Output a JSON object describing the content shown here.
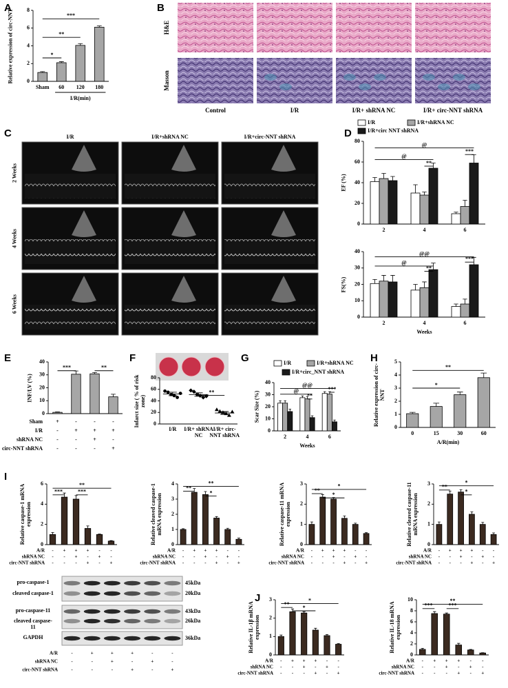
{
  "panel_labels": [
    "A",
    "B",
    "C",
    "D",
    "E",
    "F",
    "G",
    "H",
    "I",
    "J"
  ],
  "histology": {
    "stains": [
      "H&E",
      "Masson"
    ],
    "groups": [
      "Control",
      "I/R",
      "I/R+ shRNA NC",
      "I/R+ circ-NNT shRNA"
    ]
  },
  "echo": {
    "groups": [
      "I/R",
      "I/R+shRNA NC",
      "I/R+circ-NNT shRNA"
    ],
    "times": [
      "2 Weeks",
      "4 Weeks",
      "6 Weeks"
    ]
  },
  "western_blot": {
    "bands": [
      "pro-caspase-1",
      "cleaved caspase-1",
      "pro-caspase-11",
      "cleaved caspase-11",
      "GAPDH"
    ],
    "sizes": [
      "45kDa",
      "20kDa",
      "43kDa",
      "26kDa",
      "36kDa"
    ]
  },
  "group_table": {
    "rows": [
      {
        "label": "A/R",
        "signs": [
          "-",
          "+",
          "+",
          "+",
          "-",
          "-"
        ]
      },
      {
        "label": "shRNA NC",
        "signs": [
          "-",
          "-",
          "+",
          "-",
          "+",
          "-"
        ]
      },
      {
        "label": "circ-NNT shRNA",
        "signs": [
          "-",
          "-",
          "-",
          "+",
          "-",
          "+"
        ]
      }
    ]
  },
  "chart_data": [
    {
      "type": "bar",
      "y_label": "Relative expression of circ-NNT",
      "x_label": "I/R(min)",
      "categories": [
        "Sham",
        "60",
        "120",
        "180"
      ],
      "values": [
        1,
        2.1,
        4.05,
        6.1
      ],
      "errors": [
        0.1,
        0.12,
        0.2,
        0.15
      ],
      "color": "#a6a6a6",
      "ylim": [
        0,
        8
      ],
      "yticks": [
        0,
        2,
        4,
        6,
        8
      ],
      "annotations": [
        "*",
        "**",
        "***"
      ]
    },
    {
      "type": "bar",
      "y_label": "EF (%)",
      "categories": [
        "2",
        "4",
        "6"
      ],
      "series": [
        {
          "name": "I/R",
          "color": "#ffffff",
          "values": [
            41,
            30,
            10
          ],
          "errors": [
            4,
            8,
            1.5
          ]
        },
        {
          "name": "I/R+shRNA NC",
          "color": "#a6a6a6",
          "values": [
            44,
            28,
            17
          ],
          "errors": [
            5,
            3,
            6
          ]
        },
        {
          "name": "I/R+circ  NNT shRNA",
          "color": "#1a1a1a",
          "values": [
            42,
            54,
            59
          ],
          "errors": [
            4,
            5,
            8
          ]
        }
      ],
      "ylim": [
        0,
        80
      ],
      "yticks": [
        0,
        20,
        40,
        60,
        80
      ],
      "legend": true,
      "annotations": [
        "@",
        "@",
        "**",
        "***"
      ]
    },
    {
      "type": "bar",
      "y_label": "FS(%)",
      "x_label": "Weeks",
      "categories": [
        "2",
        "4",
        "6"
      ],
      "series": [
        {
          "color": "#ffffff",
          "values": [
            20.5,
            16.5,
            6.5
          ],
          "errors": [
            2.5,
            3.5,
            1.5
          ]
        },
        {
          "color": "#a6a6a6",
          "values": [
            22,
            18,
            8
          ],
          "errors": [
            3.5,
            3.5,
            3
          ]
        },
        {
          "color": "#1a1a1a",
          "values": [
            21.5,
            29,
            32
          ],
          "errors": [
            4,
            4,
            4.5
          ]
        }
      ],
      "ylim": [
        0,
        40
      ],
      "yticks": [
        0,
        10,
        20,
        30,
        40
      ],
      "legend": false,
      "annotations": [
        "@",
        "@@",
        "**",
        "***"
      ]
    },
    {
      "type": "bar",
      "y_label": "INF/LV (%)",
      "values": [
        1,
        30.5,
        30.8,
        13
      ],
      "errors": [
        0.3,
        2.5,
        1,
        2
      ],
      "color": "#a6a6a6",
      "ylim": [
        0,
        40
      ],
      "yticks": [
        0,
        10,
        20,
        30,
        40
      ],
      "table": [
        {
          "label": "Sham",
          "signs": [
            "+",
            "-",
            "-",
            "-"
          ]
        },
        {
          "label": "I/R",
          "signs": [
            "-",
            "+",
            "+",
            "+"
          ]
        },
        {
          "label": "shRNA NC",
          "signs": [
            "-",
            "-",
            "+",
            "-"
          ]
        },
        {
          "label": "circ-NNT shRNA",
          "signs": [
            "-",
            "-",
            "-",
            "+"
          ]
        }
      ],
      "annotations": [
        "***",
        "**"
      ]
    },
    {
      "type": "dot",
      "y_label": "Infarct size ( % of risk zone)",
      "categories": [
        "I/R",
        "I/R+ shRNA NC",
        "I/R+ circ-NNT shRNA"
      ],
      "points": [
        [
          57,
          55,
          51,
          49,
          46,
          53
        ],
        [
          58,
          56,
          51,
          49,
          46,
          48
        ],
        [
          25,
          22,
          20,
          18,
          15,
          21
        ]
      ],
      "means": [
        52,
        51,
        19
      ],
      "errors": [
        3,
        3,
        2.5
      ],
      "ylim": [
        0,
        80
      ],
      "yticks": [
        0,
        20,
        40,
        60,
        80
      ],
      "annotations": [
        "**"
      ]
    },
    {
      "type": "bar",
      "y_label": "Scar Size (%)",
      "x_label": "Weeks",
      "categories": [
        "2",
        "4",
        "6"
      ],
      "series": [
        {
          "name": "I/R",
          "color": "#ffffff",
          "values": [
            23,
            27.5,
            31
          ],
          "errors": [
            2,
            1.5,
            1.5
          ]
        },
        {
          "name": "I/R+shRNA NC",
          "color": "#a6a6a6",
          "values": [
            23,
            26.5,
            30.5
          ],
          "errors": [
            2,
            2,
            2
          ]
        },
        {
          "name": "I/R+circ_NNT shRNA",
          "color": "#1a1a1a",
          "values": [
            16,
            11,
            7.5
          ],
          "errors": [
            2,
            1.5,
            1.5
          ]
        }
      ],
      "ylim": [
        0,
        40
      ],
      "yticks": [
        0,
        10,
        20,
        30,
        40
      ],
      "legend": true,
      "annotations": [
        "@",
        "@@",
        "**",
        "***"
      ]
    },
    {
      "type": "bar",
      "y_label": "Relative expression of circ-NNT",
      "x_label": "A/R(min)",
      "categories": [
        "0",
        "15",
        "30",
        "60"
      ],
      "values": [
        1.05,
        1.6,
        2.5,
        3.8
      ],
      "errors": [
        0.1,
        0.25,
        0.2,
        0.35
      ],
      "color": "#a6a6a6",
      "ylim": [
        0,
        5
      ],
      "yticks": [
        0,
        1,
        2,
        3,
        4,
        5
      ],
      "annotations": [
        "*",
        "**"
      ]
    },
    {
      "type": "bar",
      "y_label": "Relative caspase-1 mRNA expression",
      "values": [
        1,
        4.7,
        4.5,
        1.6,
        1.0,
        0.35
      ],
      "errors": [
        0.2,
        0.4,
        0.35,
        0.25,
        0.05,
        0.05
      ],
      "color": "#3b2a20",
      "ylim": [
        0,
        6
      ],
      "yticks": [
        0,
        2,
        4,
        6
      ],
      "annotations": [
        "***",
        "***",
        "**"
      ]
    },
    {
      "type": "bar",
      "y_label": "Relative cleaved caspase-1 mRNA expression",
      "values": [
        1,
        3.45,
        3.3,
        1.75,
        1.0,
        0.35
      ],
      "errors": [
        0.05,
        0.25,
        0.2,
        0.1,
        0.08,
        0.08
      ],
      "color": "#3b2a20",
      "ylim": [
        0,
        4
      ],
      "yticks": [
        0,
        1,
        2,
        3,
        4
      ],
      "annotations": [
        "**",
        "*",
        "**"
      ]
    },
    {
      "type": "bar",
      "y_label": "Relative caspase-11 mRNA expression",
      "values": [
        1,
        2.35,
        2.25,
        1.3,
        1.0,
        0.55
      ],
      "errors": [
        0.12,
        0.12,
        0.08,
        0.12,
        0.06,
        0.04
      ],
      "color": "#3b2a20",
      "ylim": [
        0,
        3
      ],
      "yticks": [
        0,
        1,
        2,
        3
      ],
      "annotations": [
        "**",
        "*",
        "*"
      ]
    },
    {
      "type": "bar",
      "y_label": "Relative cleaved caspase-11 mRNA expression",
      "values": [
        1,
        2.5,
        2.6,
        1.5,
        1.0,
        0.5
      ],
      "errors": [
        0.12,
        0.15,
        0.12,
        0.12,
        0.1,
        0.08
      ],
      "color": "#3b2a20",
      "ylim": [
        0,
        3
      ],
      "yticks": [
        0,
        1,
        2,
        3
      ],
      "annotations": [
        "**",
        "*",
        "*"
      ]
    },
    {
      "type": "bar",
      "y_label": "Relative IL-1β mRNA expression",
      "values": [
        1,
        2.35,
        2.28,
        1.35,
        1.05,
        0.58
      ],
      "errors": [
        0.08,
        0.15,
        0.07,
        0.1,
        0.06,
        0.04
      ],
      "color": "#3b2a20",
      "ylim": [
        0,
        3
      ],
      "yticks": [
        0,
        1,
        2,
        3
      ],
      "annotations": [
        "**",
        "*",
        "*"
      ]
    },
    {
      "type": "bar",
      "y_label": "Relative IL-18 mRNA expression",
      "values": [
        1,
        7.5,
        7.4,
        1.8,
        0.9,
        0.35
      ],
      "errors": [
        0.2,
        0.35,
        0.2,
        0.3,
        0.1,
        0.05
      ],
      "color": "#3b2a20",
      "ylim": [
        0,
        10
      ],
      "yticks": [
        0,
        2,
        4,
        6,
        8,
        10
      ],
      "annotations": [
        "***",
        "***",
        "**"
      ]
    }
  ]
}
